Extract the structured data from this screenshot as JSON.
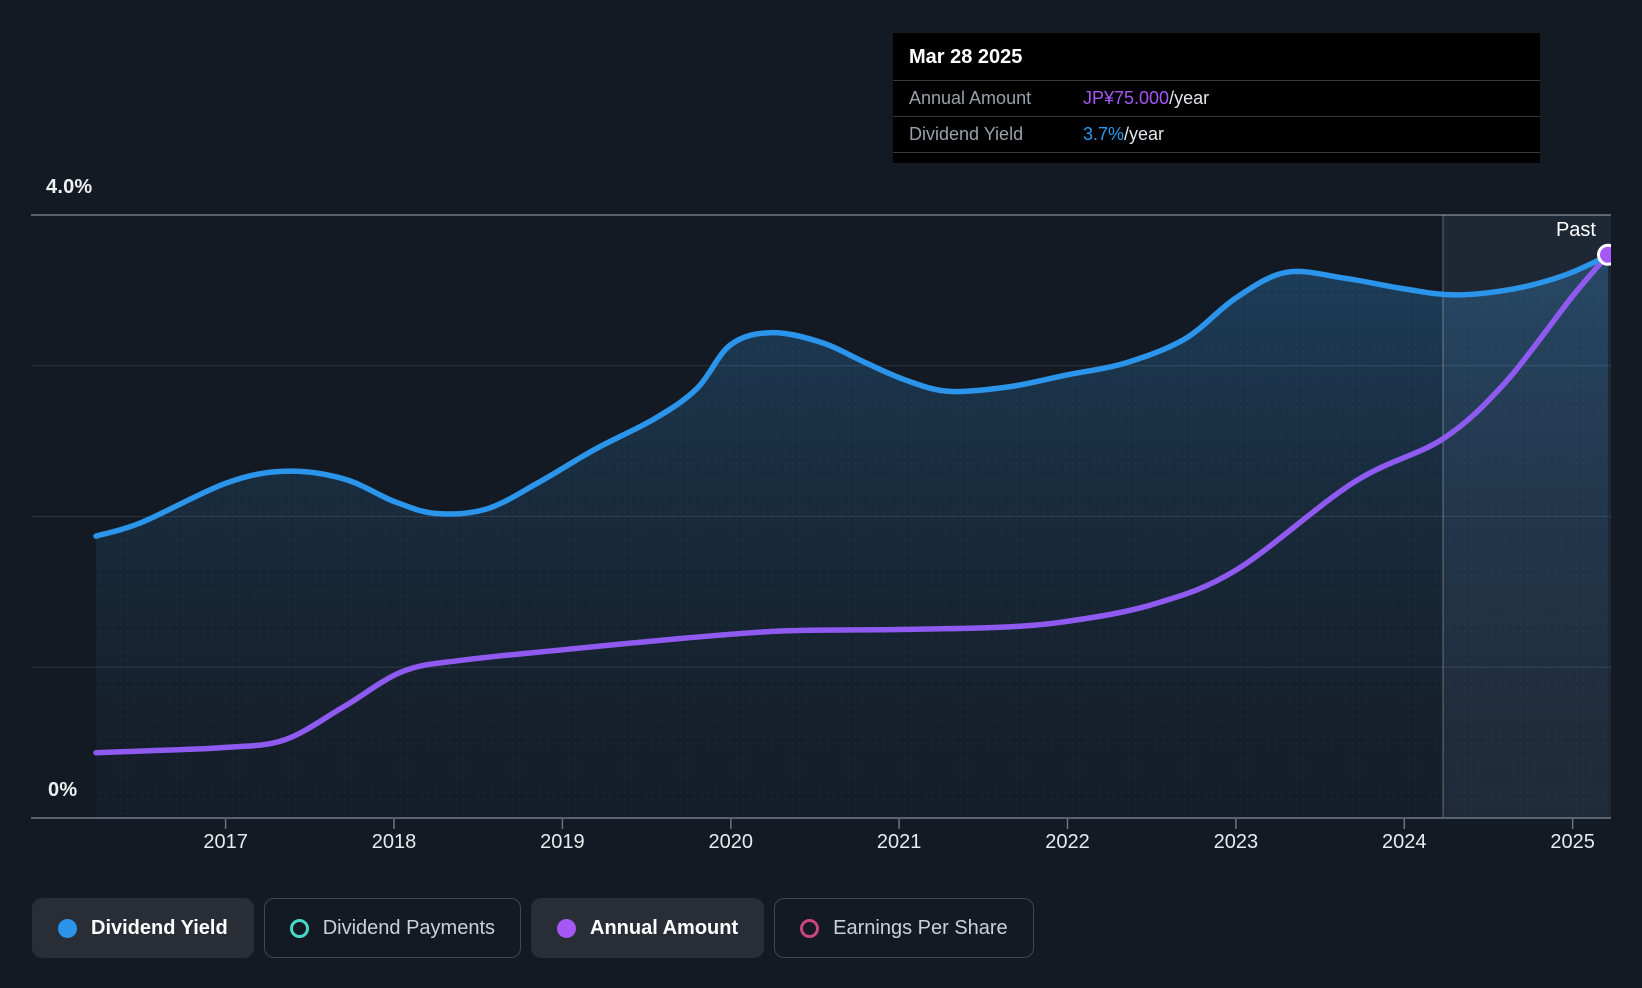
{
  "tooltip": {
    "date": "Mar 28 2025",
    "rows": [
      {
        "label": "Annual Amount",
        "value": "JP¥75.000",
        "suffix": "/year",
        "value_color": "#a558f5"
      },
      {
        "label": "Dividend Yield",
        "value": "3.7%",
        "suffix": "/year",
        "value_color": "#2b9af0"
      }
    ]
  },
  "axes": {
    "y_top_label": "4.0%",
    "y_bottom_label": "0%",
    "x_ticks": [
      "2017",
      "2018",
      "2019",
      "2020",
      "2021",
      "2022",
      "2023",
      "2024",
      "2025"
    ]
  },
  "legend": [
    {
      "label": "Dividend Yield",
      "color": "#2b95ec",
      "style": "filled",
      "active": true
    },
    {
      "label": "Dividend Payments",
      "color": "#49d7c8",
      "style": "ring",
      "active": false
    },
    {
      "label": "Annual Amount",
      "color": "#a558f5",
      "style": "filled",
      "active": true
    },
    {
      "label": "Earnings Per Share",
      "color": "#c9467d",
      "style": "ring",
      "active": false
    }
  ],
  "chart_data": {
    "type": "line",
    "x_unit": "year",
    "x_range_years": [
      2016.23,
      2025.21
    ],
    "grid": {
      "horizontal_pct": [
        4,
        3,
        2,
        1
      ],
      "vertical": false
    },
    "legend_position": "bottom",
    "series": [
      {
        "name": "Dividend Yield",
        "unit": "%",
        "color": "#2b95ec",
        "ylim": [
          0,
          4.0
        ],
        "points": [
          [
            2016.23,
            1.87
          ],
          [
            2016.5,
            1.96
          ],
          [
            2017.0,
            2.22
          ],
          [
            2017.35,
            2.3
          ],
          [
            2017.7,
            2.25
          ],
          [
            2018.0,
            2.1
          ],
          [
            2018.25,
            2.02
          ],
          [
            2018.55,
            2.05
          ],
          [
            2018.85,
            2.22
          ],
          [
            2019.2,
            2.45
          ],
          [
            2019.55,
            2.65
          ],
          [
            2019.8,
            2.85
          ],
          [
            2020.0,
            3.14
          ],
          [
            2020.25,
            3.22
          ],
          [
            2020.55,
            3.15
          ],
          [
            2020.8,
            3.02
          ],
          [
            2021.05,
            2.9
          ],
          [
            2021.3,
            2.83
          ],
          [
            2021.65,
            2.86
          ],
          [
            2022.0,
            2.94
          ],
          [
            2022.35,
            3.02
          ],
          [
            2022.7,
            3.18
          ],
          [
            2023.0,
            3.45
          ],
          [
            2023.3,
            3.62
          ],
          [
            2023.65,
            3.58
          ],
          [
            2024.0,
            3.51
          ],
          [
            2024.3,
            3.47
          ],
          [
            2024.65,
            3.51
          ],
          [
            2024.95,
            3.6
          ],
          [
            2025.21,
            3.73
          ]
        ]
      },
      {
        "name": "Annual Amount",
        "unit": "JP¥/year",
        "color": "#8f5af0",
        "ylim": [
          0,
          80.3
        ],
        "points": [
          [
            2016.23,
            8.7
          ],
          [
            2016.6,
            9.0
          ],
          [
            2017.0,
            9.4
          ],
          [
            2017.35,
            10.4
          ],
          [
            2017.7,
            14.8
          ],
          [
            2018.05,
            19.5
          ],
          [
            2018.4,
            21.0
          ],
          [
            2019.0,
            22.4
          ],
          [
            2019.7,
            23.9
          ],
          [
            2020.3,
            24.9
          ],
          [
            2021.0,
            25.1
          ],
          [
            2021.6,
            25.4
          ],
          [
            2022.0,
            26.2
          ],
          [
            2022.5,
            28.4
          ],
          [
            2023.0,
            33.0
          ],
          [
            2023.7,
            44.7
          ],
          [
            2024.23,
            50.5
          ],
          [
            2024.6,
            58.0
          ],
          [
            2025.0,
            69.5
          ],
          [
            2025.21,
            75.0
          ]
        ]
      }
    ],
    "annotations": {
      "past_label": "Past",
      "past_band_start_year": 2024.23,
      "endpoint": {
        "date": "Mar 28 2025",
        "annual_amount_jpy": 75.0,
        "dividend_yield_pct": 3.7
      }
    }
  }
}
